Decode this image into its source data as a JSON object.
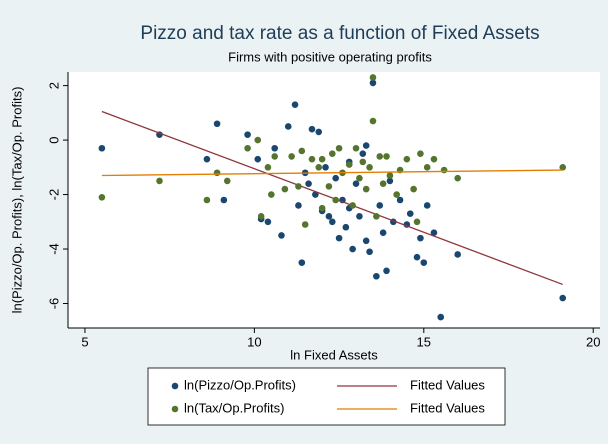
{
  "chart_data": {
    "type": "scatter",
    "title": "Pizzo and tax rate as a function of Fixed Assets",
    "subtitle": "Firms with positive operating profits",
    "x_label": "ln Fixed Assets",
    "y_label": "ln(Pizzo/Op. Profits), ln(Tax/Op. Profits)",
    "xlim": [
      4.5,
      20.2
    ],
    "ylim": [
      -6.9,
      2.5
    ],
    "xticks": [
      5,
      10,
      15,
      20
    ],
    "yticks": [
      2,
      0,
      -2,
      -4,
      -6
    ],
    "grid": false,
    "legend": "bottom",
    "series": [
      {
        "name": "ln(Pizzo/Op.Profits)",
        "color": "#1a476f",
        "mode": "markers",
        "x": [
          5.5,
          7.2,
          8.6,
          8.9,
          9.1,
          9.8,
          10.1,
          10.2,
          10.4,
          10.6,
          10.8,
          11.0,
          11.2,
          11.3,
          11.4,
          11.5,
          11.7,
          11.8,
          11.9,
          12.0,
          12.1,
          12.2,
          12.3,
          12.4,
          12.5,
          12.6,
          12.7,
          12.8,
          12.9,
          13.0,
          13.1,
          13.2,
          13.3,
          13.4,
          13.5,
          13.6,
          13.7,
          13.8,
          13.9,
          14.0,
          14.1,
          14.3,
          14.5,
          14.6,
          14.8,
          14.9,
          15.0,
          15.1,
          15.3,
          15.5,
          16.0,
          19.1,
          13.3,
          12.8,
          11.6
        ],
        "values": [
          -0.3,
          0.2,
          -0.7,
          0.6,
          -2.2,
          0.2,
          -0.7,
          -2.9,
          -3.0,
          -0.3,
          -3.5,
          0.5,
          1.3,
          -2.4,
          -4.5,
          -1.2,
          0.4,
          -2.0,
          0.3,
          -2.6,
          -1.0,
          -2.8,
          -3.0,
          -1.4,
          -3.6,
          -2.2,
          -3.2,
          -2.5,
          -4.0,
          -1.6,
          -2.8,
          -0.5,
          -3.7,
          -4.1,
          2.1,
          -5.0,
          -2.4,
          -3.4,
          -4.8,
          -1.5,
          -3.0,
          -2.2,
          -3.1,
          -2.7,
          -4.3,
          -3.6,
          -4.5,
          -2.4,
          -3.4,
          -6.5,
          -4.2,
          -5.8,
          -0.2,
          -0.8,
          -1.6
        ]
      },
      {
        "name": "Fitted Values",
        "color": "#90353b",
        "mode": "line",
        "x": [
          5.5,
          19.1
        ],
        "values": [
          1.05,
          -5.3
        ]
      },
      {
        "name": "ln(Tax/Op.Profits)",
        "color": "#55752f",
        "mode": "markers",
        "x": [
          5.5,
          7.2,
          8.6,
          8.9,
          9.2,
          9.8,
          10.1,
          10.2,
          10.4,
          10.6,
          10.9,
          11.1,
          11.3,
          11.4,
          11.5,
          11.7,
          11.9,
          12.0,
          12.2,
          12.3,
          12.4,
          12.5,
          12.6,
          12.8,
          12.9,
          13.0,
          13.1,
          13.2,
          13.3,
          13.4,
          13.5,
          13.5,
          13.6,
          13.7,
          13.8,
          13.9,
          14.0,
          14.2,
          14.3,
          14.5,
          14.7,
          14.8,
          14.9,
          15.1,
          15.3,
          15.6,
          16.0,
          19.1,
          10.5,
          12.0
        ],
        "values": [
          -2.1,
          -1.5,
          -2.2,
          -1.2,
          -1.5,
          -0.3,
          0.0,
          -2.8,
          -1.0,
          -0.6,
          -1.8,
          -0.6,
          -1.7,
          -0.4,
          -3.1,
          -0.7,
          -1.0,
          -0.7,
          -1.7,
          -0.5,
          -2.2,
          -0.3,
          -1.2,
          -0.9,
          -2.4,
          -0.3,
          -1.4,
          -0.8,
          -1.8,
          -1.0,
          2.3,
          0.7,
          -2.8,
          -0.6,
          -1.6,
          -0.6,
          -1.3,
          -2.0,
          -1.1,
          -0.7,
          -1.8,
          -3.0,
          -0.5,
          -1.0,
          -0.7,
          -1.1,
          -1.4,
          -1.0,
          -2.0,
          -2.5
        ]
      },
      {
        "name": "Fitted Values",
        "color": "#e37e00",
        "mode": "line",
        "x": [
          5.5,
          19.1
        ],
        "values": [
          -1.3,
          -1.1
        ]
      }
    ]
  }
}
